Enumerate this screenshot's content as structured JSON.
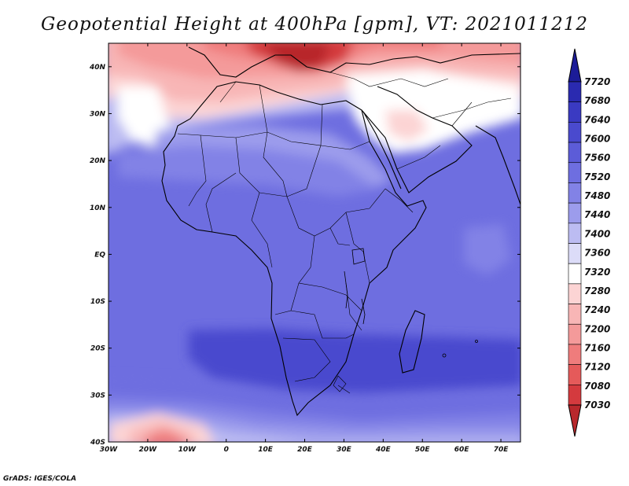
{
  "title": "Geopotential Height at 400hPa [gpm], VT: 2021011212",
  "credit": "GrADS: IGES/COLA",
  "map": {
    "lon_range": [
      -30,
      75
    ],
    "lat_range": [
      -40,
      45
    ],
    "x_ticks": [
      "30W",
      "20W",
      "10W",
      "0",
      "10E",
      "20E",
      "30E",
      "40E",
      "50E",
      "60E",
      "70E"
    ],
    "y_ticks": [
      "40N",
      "30N",
      "20N",
      "10N",
      "EQ",
      "10S",
      "20S",
      "30S",
      "40S"
    ]
  },
  "colorbar": {
    "levels": [
      7030,
      7080,
      7120,
      7160,
      7200,
      7240,
      7280,
      7320,
      7360,
      7400,
      7440,
      7480,
      7520,
      7560,
      7600,
      7640,
      7680,
      7720
    ],
    "labels": [
      "7720",
      "7680",
      "7640",
      "7600",
      "7560",
      "7520",
      "7480",
      "7440",
      "7400",
      "7360",
      "7320",
      "7280",
      "7240",
      "7200",
      "7160",
      "7120",
      "7080",
      "7030"
    ],
    "colors_low_to_high": [
      "#b8282c",
      "#d43a3e",
      "#e55a5a",
      "#ef7c7c",
      "#f49a9a",
      "#f8b6b6",
      "#fcd4d4",
      "#ffffff",
      "#dcdcf8",
      "#bcbcf2",
      "#9c9cec",
      "#8282e6",
      "#6e6ee0",
      "#5c5cd8",
      "#4a4ace",
      "#3a3ac2",
      "#2a2ab0",
      "#1c1c98"
    ]
  }
}
